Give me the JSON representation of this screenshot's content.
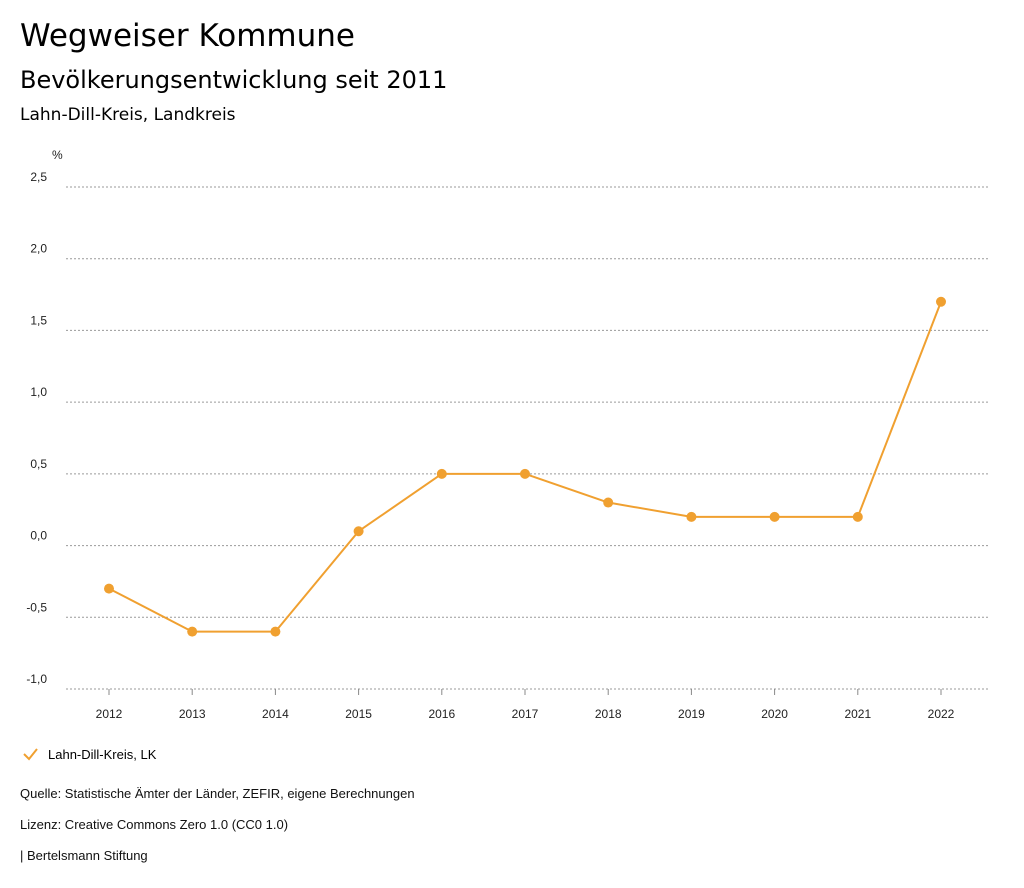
{
  "header": {
    "title": "Wegweiser Kommune",
    "subtitle": "Bevölkerungsentwicklung seit 2011",
    "region": "Lahn-Dill-Kreis, Landkreis"
  },
  "chart_data": {
    "type": "line",
    "unit_label": "%",
    "categories": [
      "2012",
      "2013",
      "2014",
      "2015",
      "2016",
      "2017",
      "2018",
      "2019",
      "2020",
      "2021",
      "2022"
    ],
    "series": [
      {
        "name": "Lahn-Dill-Kreis, LK",
        "color": "#f0a030",
        "values": [
          -0.3,
          -0.6,
          -0.6,
          0.1,
          0.5,
          0.5,
          0.3,
          0.2,
          0.2,
          0.2,
          1.7
        ]
      }
    ],
    "ylim": [
      -1.0,
      2.5
    ],
    "yticks": [
      -1.0,
      -0.5,
      0.0,
      0.5,
      1.0,
      1.5,
      2.0,
      2.5
    ],
    "ytick_labels": [
      "-1,0",
      "-0,5",
      "0,0",
      "0,5",
      "1,0",
      "1,5",
      "2,0",
      "2,5"
    ],
    "grid": true,
    "legend_placement": "bottom-left"
  },
  "legend": {
    "label": "Lahn-Dill-Kreis, LK",
    "icon": "check-icon"
  },
  "footer": {
    "source": "Quelle: Statistische Ämter der Länder, ZEFIR, eigene Berechnungen",
    "license": "Lizenz: Creative Commons Zero 1.0 (CC0 1.0)",
    "publisher": "| Bertelsmann Stiftung"
  }
}
